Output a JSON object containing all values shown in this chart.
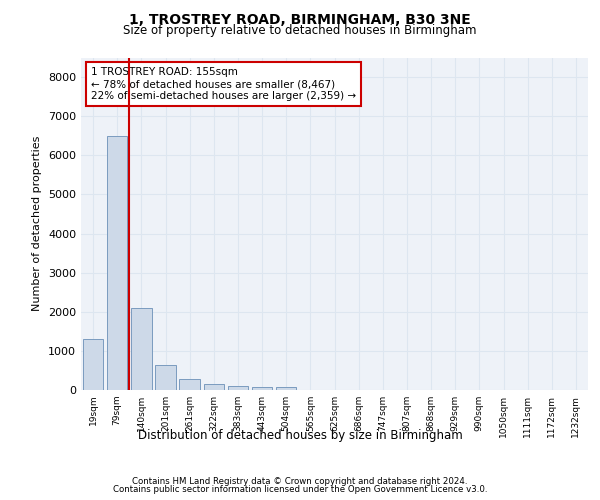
{
  "title_line1": "1, TROSTREY ROAD, BIRMINGHAM, B30 3NE",
  "title_line2": "Size of property relative to detached houses in Birmingham",
  "xlabel": "Distribution of detached houses by size in Birmingham",
  "ylabel": "Number of detached properties",
  "categories": [
    "19sqm",
    "79sqm",
    "140sqm",
    "201sqm",
    "261sqm",
    "322sqm",
    "383sqm",
    "443sqm",
    "504sqm",
    "565sqm",
    "625sqm",
    "686sqm",
    "747sqm",
    "807sqm",
    "868sqm",
    "929sqm",
    "990sqm",
    "1050sqm",
    "1111sqm",
    "1172sqm",
    "1232sqm"
  ],
  "values": [
    1300,
    6500,
    2100,
    650,
    280,
    150,
    100,
    70,
    70,
    0,
    0,
    0,
    0,
    0,
    0,
    0,
    0,
    0,
    0,
    0,
    0
  ],
  "bar_color": "#cdd9e8",
  "bar_edge_color": "#7a9bbf",
  "vline_color": "#cc0000",
  "vline_x": 1.5,
  "annotation_text": "1 TROSTREY ROAD: 155sqm\n← 78% of detached houses are smaller (8,467)\n22% of semi-detached houses are larger (2,359) →",
  "annotation_box_edge": "#cc0000",
  "ylim_max": 8500,
  "grid_color": "#dde6f0",
  "background_color": "#eef2f8",
  "footer_line1": "Contains HM Land Registry data © Crown copyright and database right 2024.",
  "footer_line2": "Contains public sector information licensed under the Open Government Licence v3.0."
}
